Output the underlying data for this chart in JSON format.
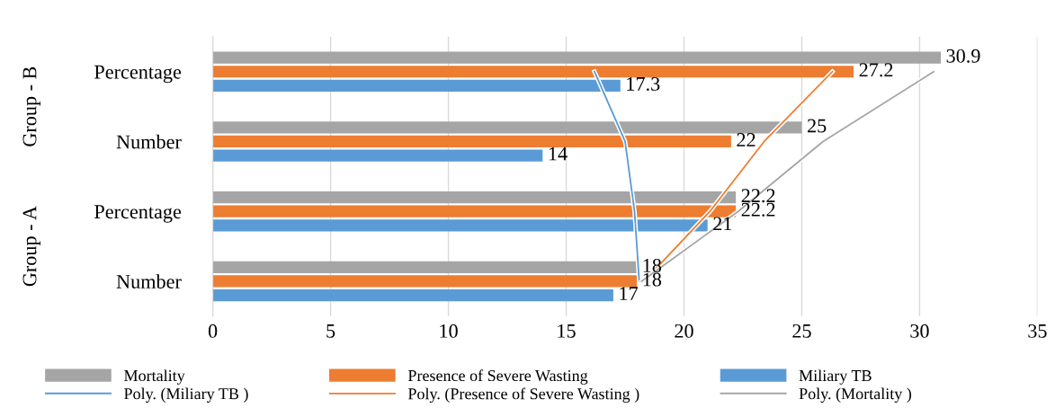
{
  "chart_data": {
    "type": "bar",
    "orientation": "horizontal",
    "categories": [
      "Percentage",
      "Number",
      "Percentage",
      "Number"
    ],
    "annotations": [
      "Group - B",
      "Group - A"
    ],
    "series": [
      {
        "name": "Mortality",
        "color": "#a5a5a5",
        "values": [
          30.9,
          25,
          22.2,
          18
        ],
        "value_labels": [
          "30.9",
          "25",
          "22.2",
          "18"
        ]
      },
      {
        "name": "Presence of Severe Wasting",
        "color": "#ed7d31",
        "values": [
          27.2,
          22,
          22.2,
          18
        ],
        "value_labels": [
          "27.2",
          "22",
          "22.2",
          "18"
        ]
      },
      {
        "name": "Miliary TB",
        "color": "#5b9bd5",
        "values": [
          17.3,
          14,
          21,
          17
        ],
        "value_labels": [
          "17.3",
          "14",
          "21",
          "17"
        ]
      },
      {
        "name": "Poly. (Miliary TB )",
        "type": "line",
        "color": "#5b9bd5",
        "values": [
          16.2,
          17.5,
          17.9,
          18.1
        ]
      },
      {
        "name": "Poly. (Presence of Severe Wasting )",
        "type": "line",
        "color": "#ed7d31",
        "values": [
          26.3,
          23.4,
          21.1,
          18.3
        ]
      },
      {
        "name": "Poly. (Mortality )",
        "type": "line",
        "color": "#a5a5a5",
        "values": [
          30.6,
          25.9,
          22.3,
          18.2
        ]
      }
    ],
    "xlim": [
      0,
      35
    ],
    "xticks": [
      0,
      5,
      10,
      15,
      20,
      25,
      30,
      35
    ],
    "grid": "x",
    "legend": "bottom"
  }
}
